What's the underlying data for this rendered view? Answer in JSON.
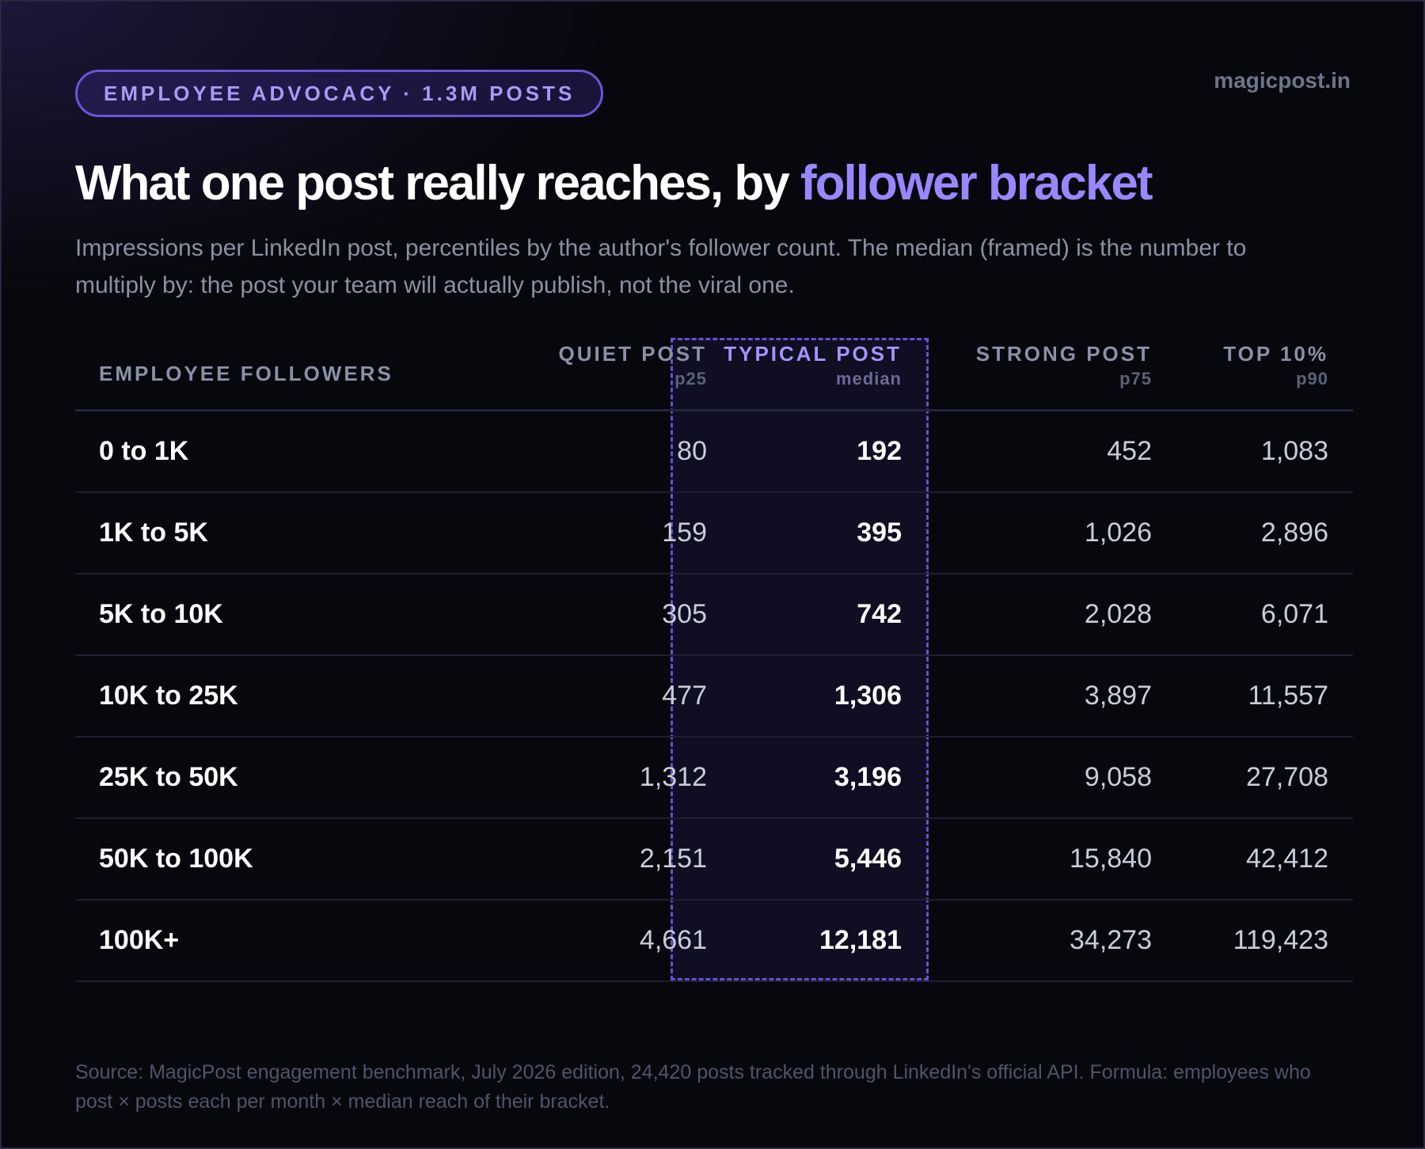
{
  "badge": "EMPLOYEE ADVOCACY · 1.3M POSTS",
  "brand": "magicpost.in",
  "title": {
    "lead": "What one post really reaches, by ",
    "accent": "follower bracket"
  },
  "subtitle": "Impressions per LinkedIn post, percentiles by the author's follower count. The median (framed) is the number to multiply by: the post your team will actually publish, not the viral one.",
  "footnote": "Source: MagicPost engagement benchmark, July 2026 edition, 24,420 posts tracked through LinkedIn's official API. Formula: employees who post × posts each per month × median reach of their bracket.",
  "colors": {
    "accent": "#9a86ff",
    "frame": "#6a4fd0",
    "background": "#07080e"
  },
  "chart_data": {
    "type": "table",
    "columns": [
      {
        "label": "EMPLOYEE FOLLOWERS",
        "sub": ""
      },
      {
        "label": "QUIET POST",
        "sub": "p25"
      },
      {
        "label": "TYPICAL POST",
        "sub": "median"
      },
      {
        "label": "STRONG POST",
        "sub": "p75"
      },
      {
        "label": "TOP 10%",
        "sub": "p90"
      }
    ],
    "highlight_column": "median",
    "rows": [
      {
        "bracket": "0 to 1K",
        "values": [
          "80",
          "192",
          "452",
          "1,083"
        ]
      },
      {
        "bracket": "1K to 5K",
        "values": [
          "159",
          "395",
          "1,026",
          "2,896"
        ]
      },
      {
        "bracket": "5K to 10K",
        "values": [
          "305",
          "742",
          "2,028",
          "6,071"
        ]
      },
      {
        "bracket": "10K to 25K",
        "values": [
          "477",
          "1,306",
          "3,897",
          "11,557"
        ]
      },
      {
        "bracket": "25K to 50K",
        "values": [
          "1,312",
          "3,196",
          "9,058",
          "27,708"
        ]
      },
      {
        "bracket": "50K to 100K",
        "values": [
          "2,151",
          "5,446",
          "15,840",
          "42,412"
        ]
      },
      {
        "bracket": "100K+",
        "values": [
          "4,661",
          "12,181",
          "34,273",
          "119,423"
        ]
      }
    ]
  }
}
